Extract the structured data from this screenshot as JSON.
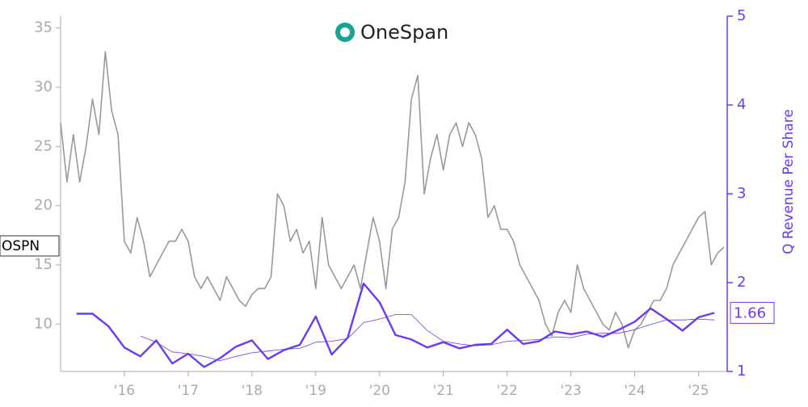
{
  "chart_data": {
    "type": "line",
    "logo_text": "OneSpan",
    "ticker": "OSPN",
    "y2_label": "Q Revenue Per Share",
    "xlim": [
      2015.0,
      2025.45
    ],
    "xticks": [
      {
        "value": 2016,
        "label": "'16"
      },
      {
        "value": 2017,
        "label": "'17"
      },
      {
        "value": 2018,
        "label": "'18"
      },
      {
        "value": 2019,
        "label": "'19"
      },
      {
        "value": 2020,
        "label": "'20"
      },
      {
        "value": 2021,
        "label": "'21"
      },
      {
        "value": 2022,
        "label": "'22"
      },
      {
        "value": 2023,
        "label": "'23"
      },
      {
        "value": 2024,
        "label": "'24"
      },
      {
        "value": 2025,
        "label": "'25"
      }
    ],
    "ylim": [
      6,
      36
    ],
    "yticks": [
      10,
      15,
      20,
      25,
      30,
      35
    ],
    "y2lim": [
      1,
      5
    ],
    "y2ticks": [
      1,
      2,
      3,
      4,
      5
    ],
    "series": [
      {
        "color": "#999999",
        "axis": "y",
        "width": 1.6,
        "x": [
          2015.0,
          2015.1,
          2015.2,
          2015.3,
          2015.4,
          2015.5,
          2015.6,
          2015.7,
          2015.8,
          2015.9,
          2016.0,
          2016.1,
          2016.2,
          2016.3,
          2016.4,
          2016.5,
          2016.6,
          2016.7,
          2016.8,
          2016.9,
          2017.0,
          2017.1,
          2017.2,
          2017.3,
          2017.4,
          2017.5,
          2017.6,
          2017.7,
          2017.8,
          2017.9,
          2018.0,
          2018.1,
          2018.2,
          2018.3,
          2018.4,
          2018.5,
          2018.6,
          2018.7,
          2018.8,
          2018.9,
          2019.0,
          2019.1,
          2019.2,
          2019.3,
          2019.4,
          2019.5,
          2019.6,
          2019.7,
          2019.8,
          2019.9,
          2020.0,
          2020.1,
          2020.2,
          2020.3,
          2020.4,
          2020.5,
          2020.6,
          2020.7,
          2020.8,
          2020.9,
          2021.0,
          2021.1,
          2021.2,
          2021.3,
          2021.4,
          2021.5,
          2021.6,
          2021.7,
          2021.8,
          2021.9,
          2022.0,
          2022.1,
          2022.2,
          2022.3,
          2022.4,
          2022.5,
          2022.6,
          2022.7,
          2022.8,
          2022.9,
          2023.0,
          2023.1,
          2023.2,
          2023.3,
          2023.4,
          2023.5,
          2023.6,
          2023.7,
          2023.8,
          2023.9,
          2024.0,
          2024.1,
          2024.2,
          2024.3,
          2024.4,
          2024.5,
          2024.6,
          2024.7,
          2024.8,
          2024.9,
          2025.0,
          2025.1,
          2025.2,
          2025.3,
          2025.4
        ],
        "values": [
          27,
          22,
          26,
          22,
          25,
          29,
          26,
          33,
          28,
          26,
          17,
          16,
          19,
          17,
          14,
          15,
          16,
          17,
          17,
          18,
          17,
          14,
          13,
          14,
          13,
          12,
          14,
          13,
          12,
          11.5,
          12.5,
          13,
          13,
          14,
          21,
          20,
          17,
          18,
          16,
          17,
          13,
          19,
          15,
          14,
          13,
          14,
          15,
          13,
          16,
          19,
          17,
          13,
          18,
          19,
          22,
          29,
          31,
          21,
          24,
          26,
          23,
          26,
          27,
          25,
          27,
          26,
          24,
          19,
          20,
          18,
          18,
          17,
          15,
          14,
          13,
          12,
          10,
          9,
          11,
          12,
          11,
          15,
          13,
          12,
          11,
          10,
          9.5,
          11,
          10,
          8,
          9.5,
          10,
          11,
          12,
          12,
          13,
          15,
          16,
          17,
          18,
          19,
          19.5,
          15,
          16,
          16.5
        ]
      },
      {
        "color": "#6a3bf0",
        "axis": "y2",
        "width": 2.4,
        "x": [
          2015.25,
          2015.5,
          2015.75,
          2016.0,
          2016.25,
          2016.5,
          2016.75,
          2017.0,
          2017.25,
          2017.5,
          2017.75,
          2018.0,
          2018.25,
          2018.5,
          2018.75,
          2019.0,
          2019.25,
          2019.5,
          2019.75,
          2020.0,
          2020.25,
          2020.5,
          2020.75,
          2021.0,
          2021.25,
          2021.5,
          2021.75,
          2022.0,
          2022.25,
          2022.5,
          2022.75,
          2023.0,
          2023.25,
          2023.5,
          2023.75,
          2024.0,
          2024.25,
          2024.5,
          2024.75,
          2025.0,
          2025.25
        ],
        "values": [
          1.65,
          1.65,
          1.51,
          1.27,
          1.17,
          1.35,
          1.09,
          1.2,
          1.05,
          1.15,
          1.28,
          1.35,
          1.14,
          1.24,
          1.3,
          1.62,
          1.19,
          1.38,
          1.99,
          1.78,
          1.41,
          1.36,
          1.27,
          1.33,
          1.26,
          1.3,
          1.31,
          1.47,
          1.31,
          1.34,
          1.45,
          1.42,
          1.45,
          1.39,
          1.47,
          1.56,
          1.71,
          1.59,
          1.46,
          1.61,
          1.66
        ]
      },
      {
        "color": "#6a3bf0",
        "axis": "y2",
        "width": 0.8,
        "x": [
          2015.25,
          2015.5,
          2015.75,
          2016.0,
          2016.25,
          2016.5,
          2016.75,
          2017.0,
          2017.25,
          2017.5,
          2017.75,
          2018.0,
          2018.25,
          2018.5,
          2018.75,
          2019.0,
          2019.25,
          2019.5,
          2019.75,
          2020.0,
          2020.25,
          2020.5,
          2020.75,
          2021.0,
          2021.25,
          2021.5,
          2021.75,
          2022.0,
          2022.25,
          2022.5,
          2022.75,
          2023.0,
          2023.25,
          2023.5,
          2023.75,
          2024.0,
          2024.25,
          2024.5,
          2024.75,
          2025.0,
          2025.25
        ],
        "values": [
          null,
          null,
          null,
          null,
          1.4,
          1.33,
          1.22,
          1.2,
          1.17,
          1.12,
          1.17,
          1.21,
          1.23,
          1.25,
          1.26,
          1.33,
          1.34,
          1.37,
          1.55,
          1.59,
          1.64,
          1.64,
          1.46,
          1.34,
          1.31,
          1.29,
          1.3,
          1.34,
          1.35,
          1.36,
          1.39,
          1.38,
          1.42,
          1.43,
          1.43,
          1.47,
          1.53,
          1.58,
          1.58,
          1.59,
          1.58
        ]
      }
    ]
  }
}
